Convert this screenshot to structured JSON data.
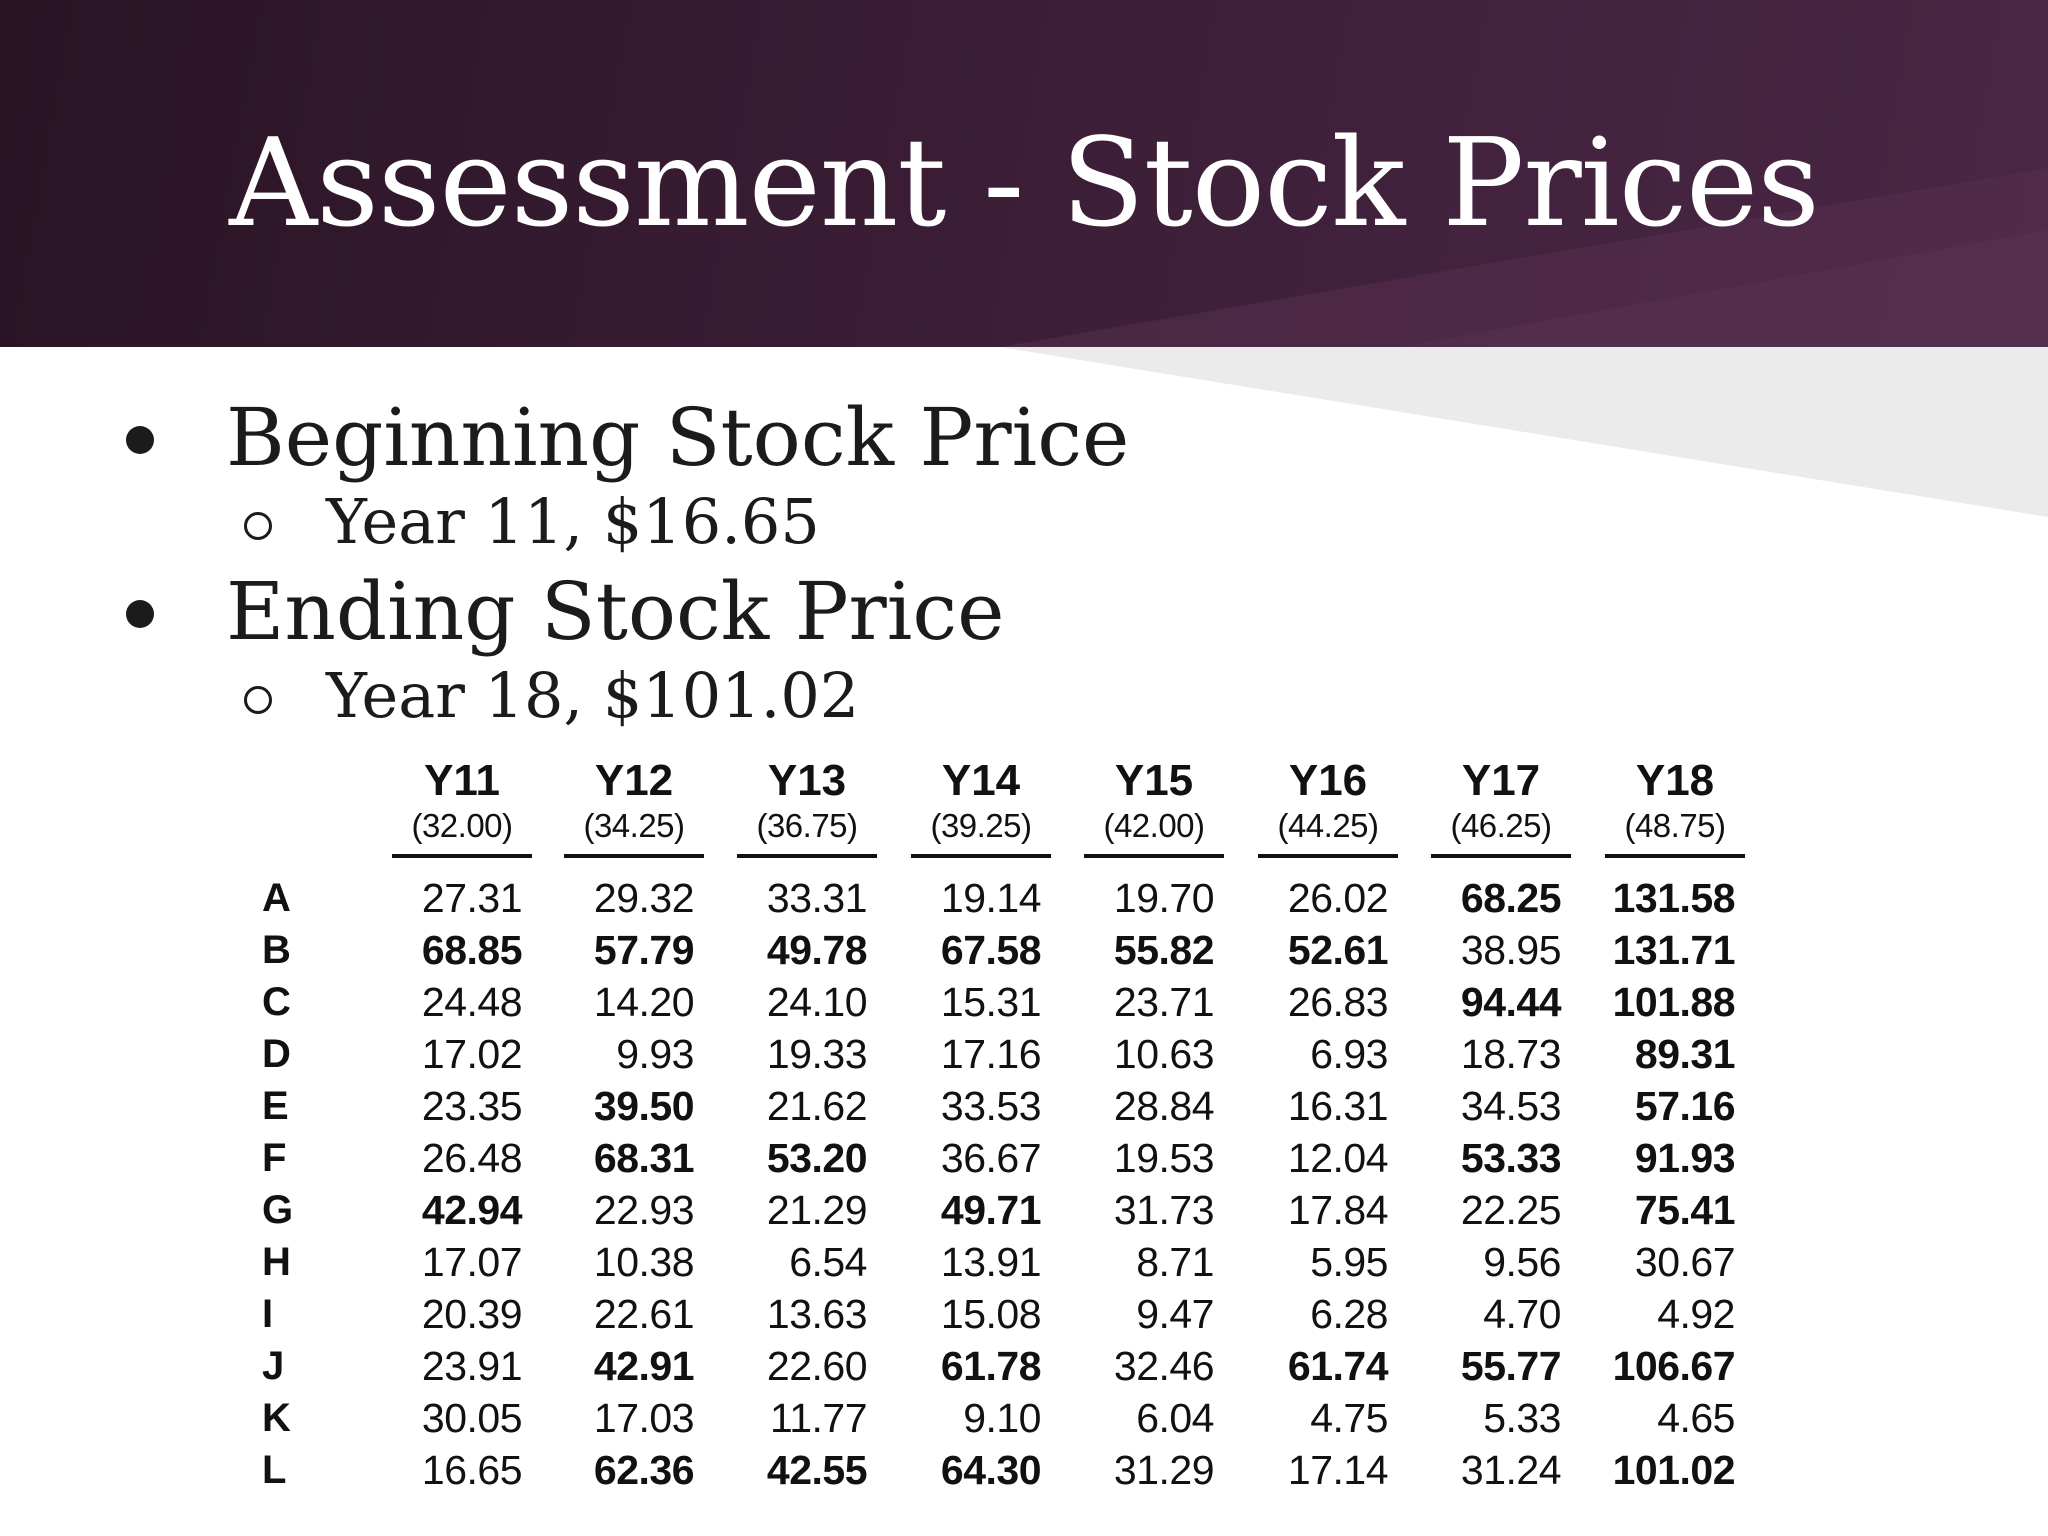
{
  "title": "Assessment - Stock Prices",
  "bullets": [
    {
      "label": "Beginning Stock Price",
      "sub": "Year 11, $16.65"
    },
    {
      "label": "Ending Stock Price",
      "sub": "Year 18, $101.02"
    }
  ],
  "table": {
    "columns": [
      {
        "year": "Y11",
        "base": "(32.00)"
      },
      {
        "year": "Y12",
        "base": "(34.25)"
      },
      {
        "year": "Y13",
        "base": "(36.75)"
      },
      {
        "year": "Y14",
        "base": "(39.25)"
      },
      {
        "year": "Y15",
        "base": "(42.00)"
      },
      {
        "year": "Y16",
        "base": "(44.25)"
      },
      {
        "year": "Y17",
        "base": "(46.25)"
      },
      {
        "year": "Y18",
        "base": "(48.75)"
      }
    ],
    "rows": [
      {
        "label": "A",
        "values": [
          "27.31",
          "29.32",
          "33.31",
          "19.14",
          "19.70",
          "26.02",
          "68.25",
          "131.58"
        ],
        "bold": [
          false,
          false,
          false,
          false,
          false,
          false,
          true,
          true
        ]
      },
      {
        "label": "B",
        "values": [
          "68.85",
          "57.79",
          "49.78",
          "67.58",
          "55.82",
          "52.61",
          "38.95",
          "131.71"
        ],
        "bold": [
          true,
          true,
          true,
          true,
          true,
          true,
          false,
          true
        ]
      },
      {
        "label": "C",
        "values": [
          "24.48",
          "14.20",
          "24.10",
          "15.31",
          "23.71",
          "26.83",
          "94.44",
          "101.88"
        ],
        "bold": [
          false,
          false,
          false,
          false,
          false,
          false,
          true,
          true
        ]
      },
      {
        "label": "D",
        "values": [
          "17.02",
          "9.93",
          "19.33",
          "17.16",
          "10.63",
          "6.93",
          "18.73",
          "89.31"
        ],
        "bold": [
          false,
          false,
          false,
          false,
          false,
          false,
          false,
          true
        ]
      },
      {
        "label": "E",
        "values": [
          "23.35",
          "39.50",
          "21.62",
          "33.53",
          "28.84",
          "16.31",
          "34.53",
          "57.16"
        ],
        "bold": [
          false,
          true,
          false,
          false,
          false,
          false,
          false,
          true
        ]
      },
      {
        "label": "F",
        "values": [
          "26.48",
          "68.31",
          "53.20",
          "36.67",
          "19.53",
          "12.04",
          "53.33",
          "91.93"
        ],
        "bold": [
          false,
          true,
          true,
          false,
          false,
          false,
          true,
          true
        ]
      },
      {
        "label": "G",
        "values": [
          "42.94",
          "22.93",
          "21.29",
          "49.71",
          "31.73",
          "17.84",
          "22.25",
          "75.41"
        ],
        "bold": [
          true,
          false,
          false,
          true,
          false,
          false,
          false,
          true
        ]
      },
      {
        "label": "H",
        "values": [
          "17.07",
          "10.38",
          "6.54",
          "13.91",
          "8.71",
          "5.95",
          "9.56",
          "30.67"
        ],
        "bold": [
          false,
          false,
          false,
          false,
          false,
          false,
          false,
          false
        ]
      },
      {
        "label": "I",
        "values": [
          "20.39",
          "22.61",
          "13.63",
          "15.08",
          "9.47",
          "6.28",
          "4.70",
          "4.92"
        ],
        "bold": [
          false,
          false,
          false,
          false,
          false,
          false,
          false,
          false
        ]
      },
      {
        "label": "J",
        "values": [
          "23.91",
          "42.91",
          "22.60",
          "61.78",
          "32.46",
          "61.74",
          "55.77",
          "106.67"
        ],
        "bold": [
          false,
          true,
          false,
          true,
          false,
          true,
          true,
          true
        ]
      },
      {
        "label": "K",
        "values": [
          "30.05",
          "17.03",
          "11.77",
          "9.10",
          "6.04",
          "4.75",
          "5.33",
          "4.65"
        ],
        "bold": [
          false,
          false,
          false,
          false,
          false,
          false,
          false,
          false
        ]
      },
      {
        "label": "L",
        "values": [
          "16.65",
          "62.36",
          "42.55",
          "64.30",
          "31.29",
          "17.14",
          "31.24",
          "101.02"
        ],
        "bold": [
          false,
          true,
          true,
          true,
          false,
          false,
          false,
          true
        ]
      }
    ]
  }
}
